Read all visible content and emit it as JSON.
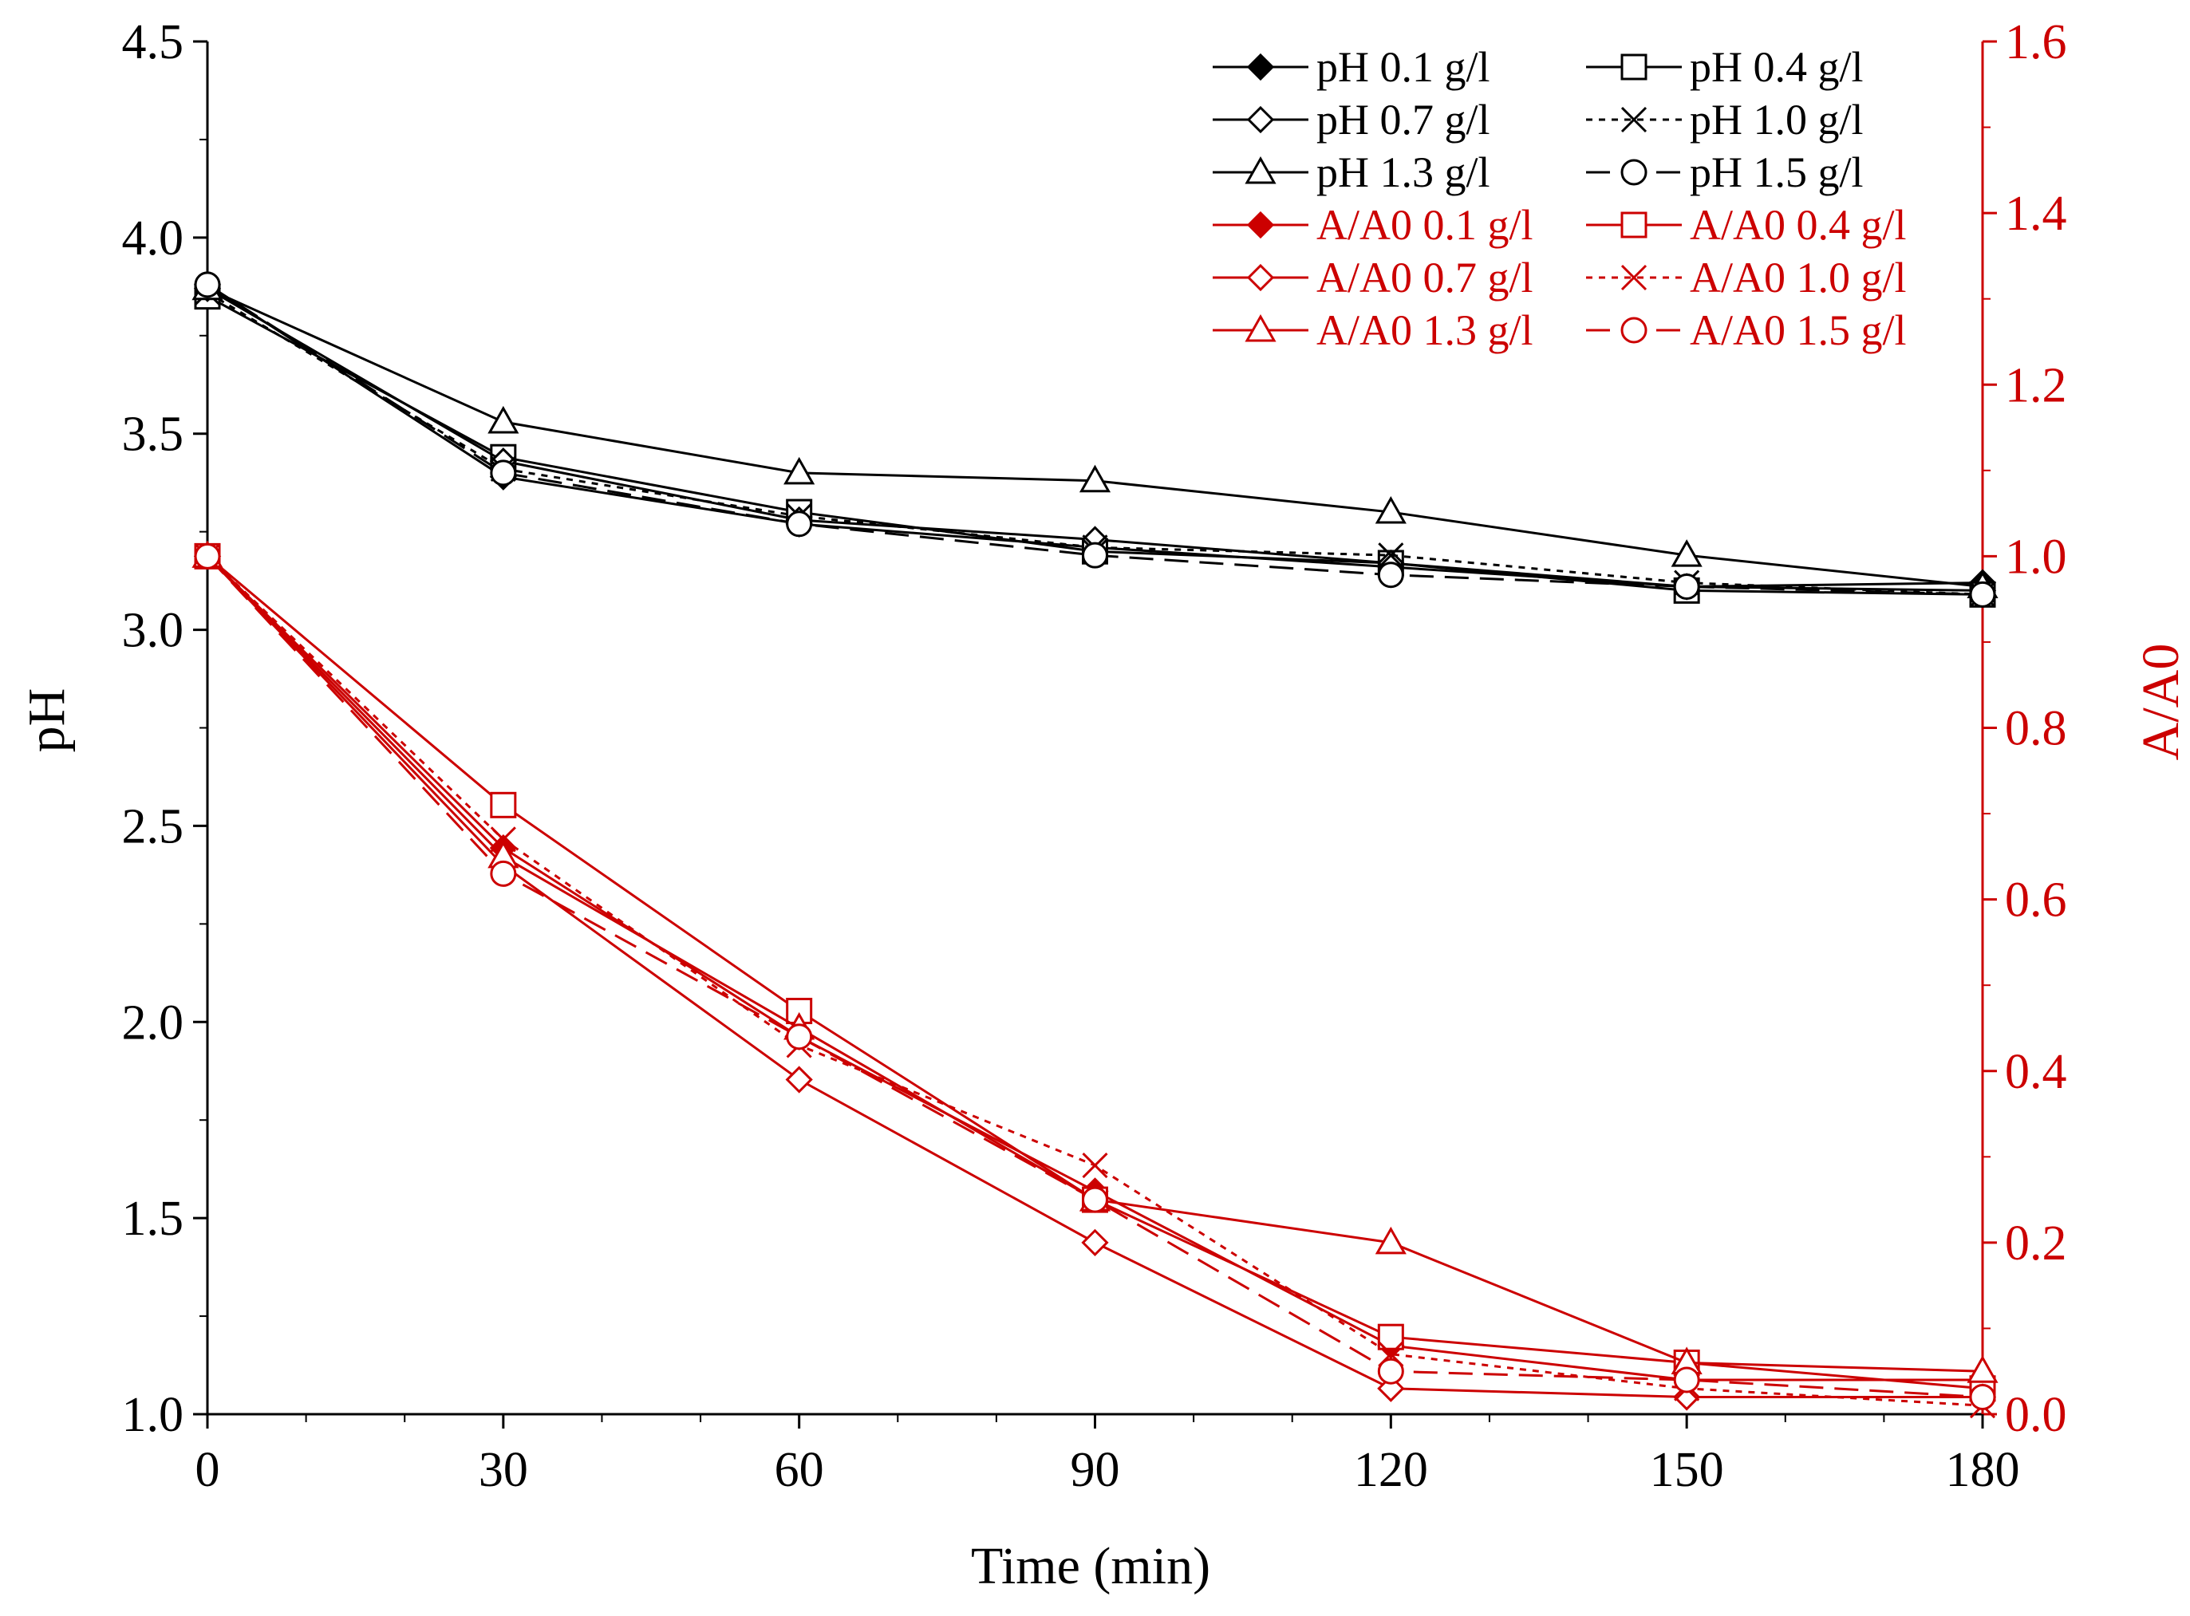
{
  "chart_data": {
    "type": "line",
    "title": "",
    "xlabel": "Time (min)",
    "ylabel": "pH",
    "y2label": "A/A0",
    "x": [
      0,
      30,
      60,
      90,
      120,
      150,
      180
    ],
    "xticks": [
      "0",
      "30",
      "60",
      "90",
      "120",
      "150",
      "180"
    ],
    "xlim": [
      0,
      180
    ],
    "ylim": [
      1.0,
      4.5
    ],
    "yticks": [
      "1.0",
      "1.5",
      "2.0",
      "2.5",
      "3.0",
      "3.5",
      "4.0",
      "4.5"
    ],
    "y2lim": [
      0.0,
      1.6
    ],
    "y2ticks": [
      "0.0",
      "0.2",
      "0.4",
      "0.6",
      "0.8",
      "1.0",
      "1.2",
      "1.4",
      "1.6"
    ],
    "legend_position": "top-right",
    "colors": {
      "ph": "#000000",
      "aa0": "#cc0000"
    },
    "series": [
      {
        "name": "pH 0.1 g/l",
        "axis": "left",
        "marker": "diamond-filled",
        "dash": "solid",
        "values": [
          3.88,
          3.39,
          3.27,
          3.21,
          3.16,
          3.11,
          3.12
        ]
      },
      {
        "name": "pH 0.4 g/l",
        "axis": "left",
        "marker": "square",
        "dash": "solid",
        "values": [
          3.85,
          3.44,
          3.3,
          3.2,
          3.17,
          3.1,
          3.09
        ]
      },
      {
        "name": "pH 0.7 g/l",
        "axis": "left",
        "marker": "diamond",
        "dash": "solid",
        "values": [
          3.87,
          3.43,
          3.28,
          3.23,
          3.17,
          3.11,
          3.1
        ]
      },
      {
        "name": "pH 1.0 g/l",
        "axis": "left",
        "marker": "x",
        "dash": "dotted",
        "values": [
          3.86,
          3.41,
          3.29,
          3.21,
          3.19,
          3.12,
          3.09
        ]
      },
      {
        "name": "pH 1.3 g/l",
        "axis": "left",
        "marker": "triangle",
        "dash": "solid",
        "values": [
          3.87,
          3.53,
          3.4,
          3.38,
          3.3,
          3.19,
          3.11
        ]
      },
      {
        "name": "pH 1.5 g/l",
        "axis": "left",
        "marker": "circle",
        "dash": "dashed",
        "values": [
          3.88,
          3.4,
          3.27,
          3.19,
          3.14,
          3.11,
          3.09
        ]
      },
      {
        "name": "A/A0 0.1 g/l",
        "axis": "right",
        "marker": "diamond-filled",
        "dash": "solid",
        "values": [
          1.0,
          0.66,
          0.44,
          0.26,
          0.08,
          0.04,
          0.04
        ]
      },
      {
        "name": "A/A0 0.4 g/l",
        "axis": "right",
        "marker": "square",
        "dash": "solid",
        "values": [
          1.0,
          0.71,
          0.47,
          0.25,
          0.09,
          0.06,
          0.03
        ]
      },
      {
        "name": "A/A0 0.7 g/l",
        "axis": "right",
        "marker": "diamond",
        "dash": "solid",
        "values": [
          1.0,
          0.64,
          0.39,
          0.2,
          0.03,
          0.02,
          0.02
        ]
      },
      {
        "name": "A/A0 1.0 g/l",
        "axis": "right",
        "marker": "x",
        "dash": "dotted",
        "values": [
          1.0,
          0.67,
          0.43,
          0.29,
          0.07,
          0.03,
          0.01
        ]
      },
      {
        "name": "A/A0 1.3 g/l",
        "axis": "right",
        "marker": "triangle",
        "dash": "solid",
        "values": [
          1.0,
          0.65,
          0.45,
          0.25,
          0.2,
          0.06,
          0.05
        ]
      },
      {
        "name": "A/A0 1.5 g/l",
        "axis": "right",
        "marker": "circle",
        "dash": "dashed",
        "values": [
          1.0,
          0.63,
          0.44,
          0.25,
          0.05,
          0.04,
          0.02
        ]
      }
    ]
  }
}
